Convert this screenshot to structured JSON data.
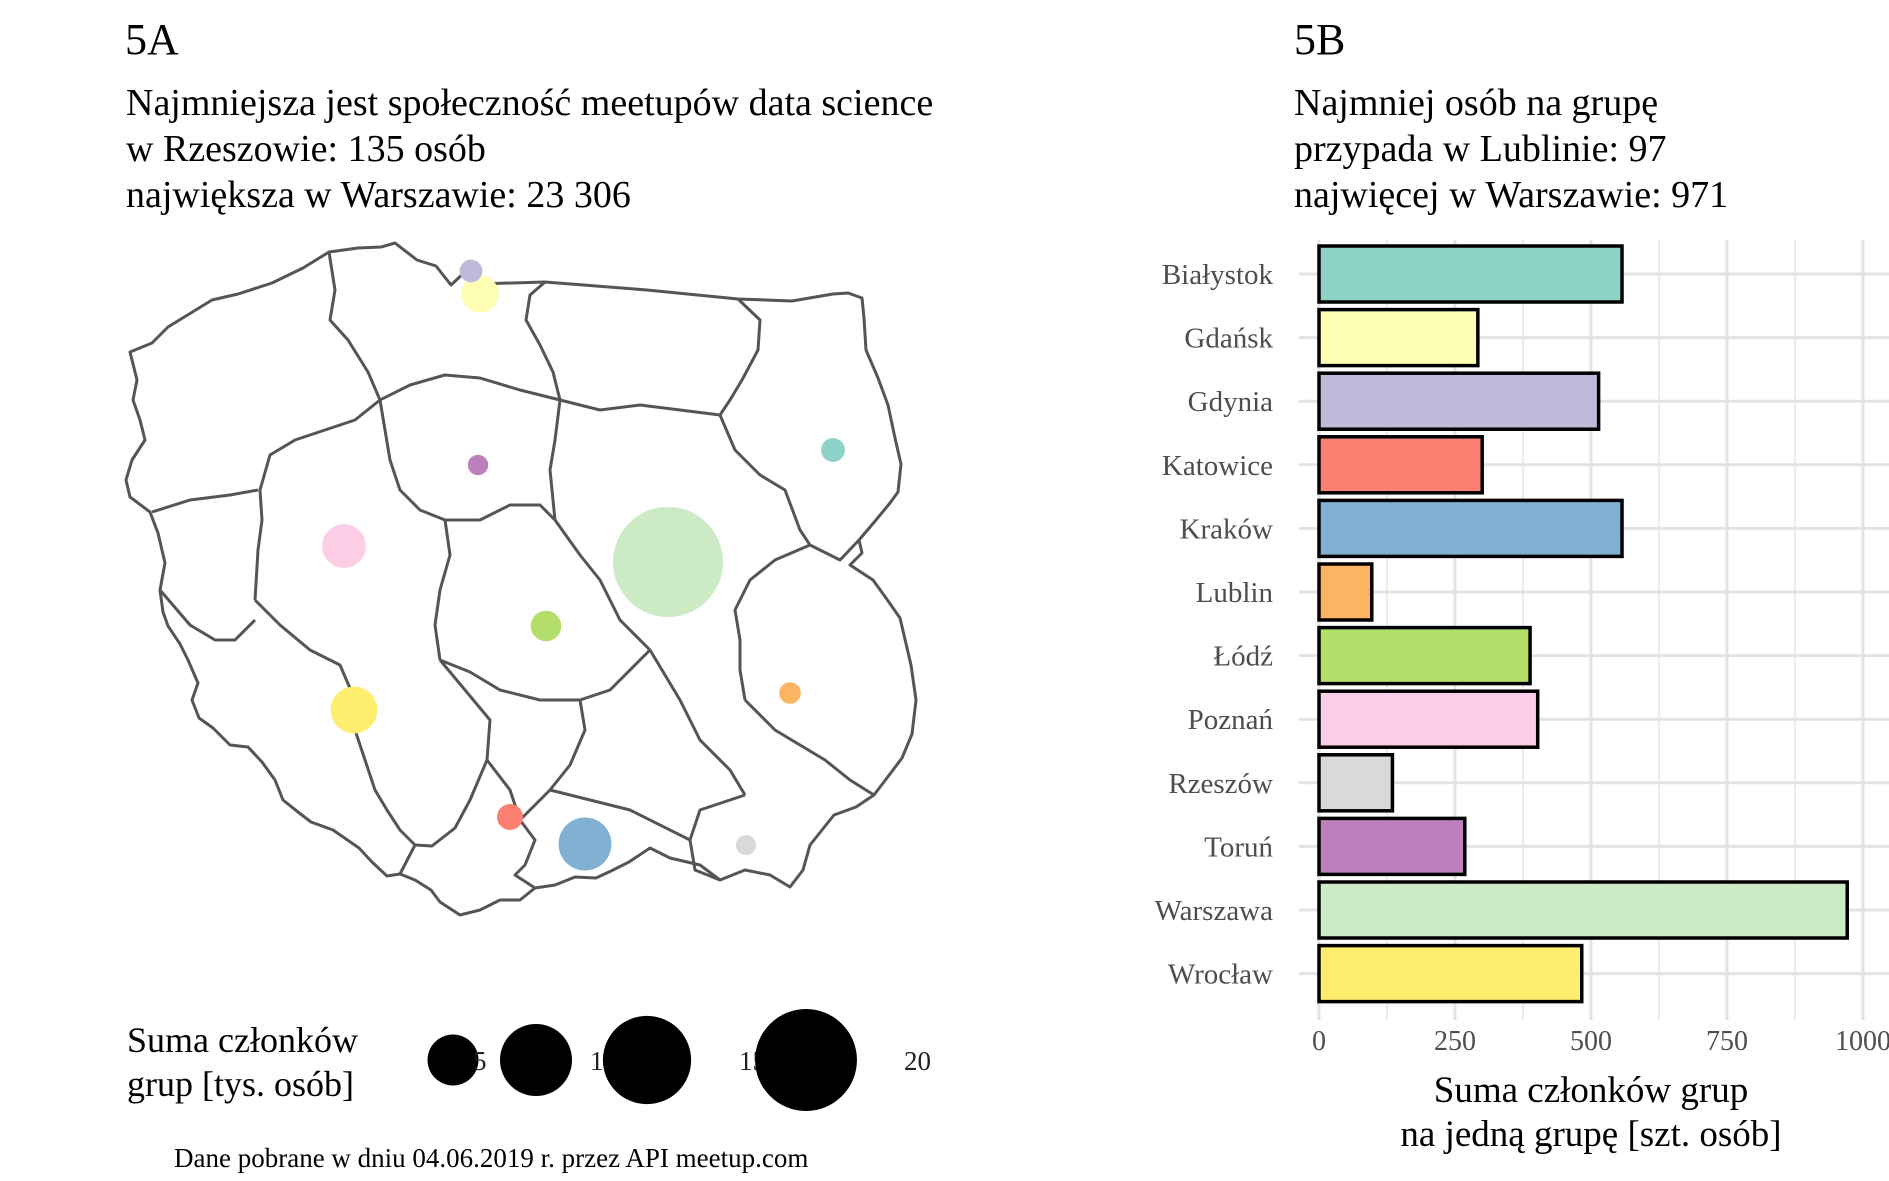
{
  "panel_a": {
    "label": "5A",
    "subtitle_lines": [
      "Najmniejsza jest społeczność meetupów data science",
      "w Rzeszowie: 135 osób",
      "największa w Warszawie: 23 306"
    ],
    "legend": {
      "title_lines": [
        "Suma członków",
        "grup [tys. osób]"
      ],
      "sizes": [
        5,
        10,
        15,
        20
      ],
      "color": "#000000"
    },
    "caption": "Dane pobrane w dniu 04.06.2019 r. przez API meetup.com"
  },
  "panel_b": {
    "label": "5B",
    "subtitle_lines": [
      "Najmniej osób na grupę",
      "przypada w Lublinie: 97",
      "najwięcej w Warszawie: 971"
    ]
  },
  "chart_data": [
    {
      "type": "scatter",
      "subtype": "bubble-map",
      "region": "Poland (voivodeships)",
      "size_label": "Suma członków grup [tys. osób]",
      "size_legend": [
        5,
        10,
        15,
        20
      ],
      "points": [
        {
          "city": "Białystok",
          "members_thousands": 1.1,
          "color": "#8DD3C7"
        },
        {
          "city": "Gdańsk",
          "members_thousands": 2.7,
          "color": "#FFFFB3"
        },
        {
          "city": "Gdynia",
          "members_thousands": 1.0,
          "color": "#BEBADA"
        },
        {
          "city": "Katowice",
          "members_thousands": 1.3,
          "color": "#FB8072"
        },
        {
          "city": "Kraków",
          "members_thousands": 5.4,
          "color": "#80B1D3"
        },
        {
          "city": "Lublin",
          "members_thousands": 0.9,
          "color": "#FDB462"
        },
        {
          "city": "Łódź",
          "members_thousands": 1.8,
          "color": "#B3DE69"
        },
        {
          "city": "Poznań",
          "members_thousands": 3.7,
          "color": "#FCCDE5"
        },
        {
          "city": "Rzeszów",
          "members_thousands": 0.135,
          "color": "#D9D9D9"
        },
        {
          "city": "Toruń",
          "members_thousands": 0.8,
          "color": "#BC80BD"
        },
        {
          "city": "Warszawa",
          "members_thousands": 23.306,
          "color": "#CCEBC5"
        },
        {
          "city": "Wrocław",
          "members_thousands": 4.2,
          "color": "#FFED6F"
        }
      ]
    },
    {
      "type": "bar",
      "orientation": "horizontal",
      "categories": [
        "Białystok",
        "Gdańsk",
        "Gdynia",
        "Katowice",
        "Kraków",
        "Lublin",
        "Łódź",
        "Poznań",
        "Rzeszów",
        "Toruń",
        "Warszawa",
        "Wrocław"
      ],
      "values": [
        557,
        292,
        514,
        300,
        557,
        97,
        388,
        402,
        135,
        268,
        971,
        483
      ],
      "colors": [
        "#8DD3C7",
        "#FFFFB3",
        "#BEBADA",
        "#FB8072",
        "#80B1D3",
        "#FDB462",
        "#B3DE69",
        "#FCCDE5",
        "#D9D9D9",
        "#BC80BD",
        "#CCEBC5",
        "#FFED6F"
      ],
      "xlabel_lines": [
        "Suma członków grup",
        "na jedną grupę [szt. osób]"
      ],
      "xticks": [
        0,
        250,
        500,
        750,
        1000
      ],
      "xlim": [
        0,
        1000
      ],
      "grid": true
    }
  ]
}
